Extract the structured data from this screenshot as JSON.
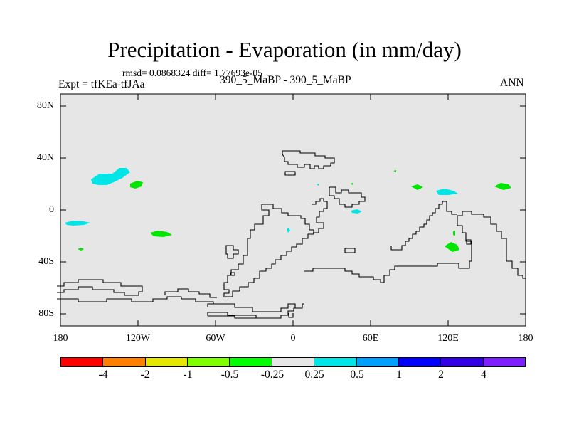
{
  "title": "Precipitation - Evaporation (in mm/day)",
  "stats_line": "rmsd= 0.0868324 diff= 1.77693e-05",
  "experiment": "Expt = tfKEa-tfJAa",
  "period": "390_5_MaBP - 390_5_MaBP",
  "season": "ANN",
  "map": {
    "background_color": "#e6e6e6",
    "lat_labels": [
      "80N",
      "40N",
      "0",
      "40S",
      "80S"
    ],
    "lon_labels": [
      "180",
      "120W",
      "60W",
      "0",
      "60E",
      "120E",
      "180"
    ]
  },
  "colorbar": {
    "colors": [
      "#ff0000",
      "#ff8000",
      "#e6e600",
      "#80ff00",
      "#00ff00",
      "#e6e6e6",
      "#00e6e6",
      "#00a0ff",
      "#0000ff",
      "#3300e6",
      "#7f1fff"
    ],
    "labels": [
      "-4",
      "-2",
      "-1",
      "-0.5",
      "-0.25",
      "0.25",
      "0.5",
      "1",
      "2",
      "4"
    ]
  }
}
